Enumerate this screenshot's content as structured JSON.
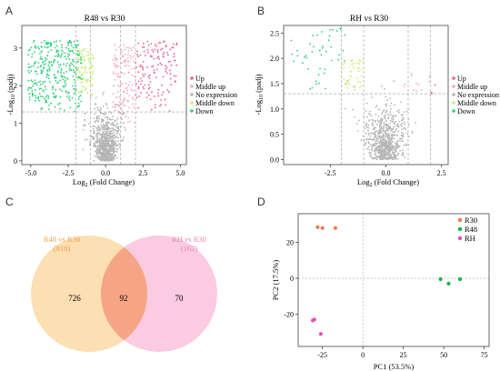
{
  "panels": {
    "A": {
      "letter": "A",
      "title": "R48 vs R30",
      "xlabel": "Log2 (Fold Change)",
      "ylabel": "-Log10 (padj)",
      "xticks": [
        "-5.0",
        "-2.5",
        "0.0",
        "2.5",
        "5.0"
      ],
      "yticks": [
        "0",
        "1",
        "2",
        "3"
      ],
      "legend": [
        "Up",
        "Middle up",
        "No expression",
        "Middle down",
        "Down"
      ]
    },
    "B": {
      "letter": "B",
      "title": "RH vs R30",
      "xlabel": "Log2 (Fold Change)",
      "ylabel": "-Log10 (padj)",
      "xticks": [
        "-2.5",
        "0.0",
        "2.5"
      ],
      "yticks": [
        "0.0",
        "0.5",
        "1.0",
        "1.5",
        "2.0",
        "2.5"
      ],
      "legend": [
        "Up",
        "Middle up",
        "No expression",
        "Middle down",
        "Down"
      ]
    },
    "C": {
      "letter": "C",
      "left_label": "R48 vs R30",
      "left_count": "(818)",
      "right_label": "RH vs R30",
      "right_count": "(162)",
      "only_left": "726",
      "overlap": "92",
      "only_right": "70"
    },
    "D": {
      "letter": "D",
      "xlabel": "PC1 (53.5%)",
      "ylabel": "PC2 (17.5%)",
      "xticks": [
        "-25",
        "0",
        "25",
        "50",
        "75"
      ],
      "yticks": [
        "20",
        "0",
        "-20"
      ],
      "legend": [
        "R30",
        "R48",
        "RH"
      ]
    }
  },
  "colors": {
    "up": "#e8608a",
    "middle_up": "#f5a8c8",
    "no_expression": "#b5b5b5",
    "middle_down": "#c8ef6a",
    "down": "#2ccf7a",
    "venn_left": "#fbd9a5",
    "venn_right": "#f9c2dc",
    "venn_overlap": "#f5a585",
    "venn_left_text": "#e8a14a",
    "venn_right_text": "#e586b2",
    "pca_R30": "#f07a4a",
    "pca_R48": "#19b34a",
    "pca_RH": "#e050c0"
  },
  "chart_data": [
    {
      "type": "scatter",
      "title": "R48 vs R30",
      "xlabel": "Log2 (Fold Change)",
      "ylabel": "-Log10 (padj)",
      "xlim": [
        -5.6,
        5.4
      ],
      "ylim": [
        -0.1,
        3.6
      ],
      "thresholds": {
        "x": [
          -2,
          -1,
          1,
          2
        ],
        "y": 1.3
      },
      "series": [
        {
          "name": "Up",
          "region": "x>2, y>1.3",
          "approx_count": 140,
          "x_range": [
            2.0,
            4.8
          ],
          "y_range": [
            1.3,
            3.2
          ]
        },
        {
          "name": "Middle up",
          "region": "1<x<2, y>1.3",
          "approx_count": 120,
          "x_range": [
            0.5,
            2.0
          ],
          "y_range": [
            1.0,
            3.1
          ]
        },
        {
          "name": "No expression",
          "region": "center / y<1.3",
          "approx_count": 800,
          "x_range": [
            -1.5,
            1.5
          ],
          "y_range": [
            0.0,
            2.0
          ]
        },
        {
          "name": "Middle down",
          "region": "-2<x<-1, y>1.3",
          "approx_count": 90,
          "x_range": [
            -2.0,
            -0.8
          ],
          "y_range": [
            1.7,
            3.0
          ]
        },
        {
          "name": "Down",
          "region": "x<-2, y>1.3",
          "approx_count": 330,
          "x_range": [
            -5.2,
            -1.6
          ],
          "y_range": [
            1.3,
            3.2
          ]
        }
      ]
    },
    {
      "type": "scatter",
      "title": "RH vs R30",
      "xlabel": "Log2 (Fold Change)",
      "ylabel": "-Log10 (padj)",
      "xlim": [
        -4.6,
        2.8
      ],
      "ylim": [
        -0.1,
        2.65
      ],
      "thresholds": {
        "x": [
          -2,
          -1,
          1,
          2
        ],
        "y": 1.3
      },
      "series": [
        {
          "name": "Up",
          "region": "x>2, y>1.3",
          "approx_count": 3,
          "x_range": [
            2.0,
            2.3
          ],
          "y_range": [
            1.3,
            1.5
          ]
        },
        {
          "name": "Middle up",
          "region": "1<x<2, y>1.3",
          "approx_count": 12,
          "x_range": [
            0.8,
            2.0
          ],
          "y_range": [
            1.3,
            1.7
          ]
        },
        {
          "name": "No expression",
          "region": "center / y<1.3",
          "approx_count": 700,
          "x_range": [
            -2.0,
            1.5
          ],
          "y_range": [
            0.0,
            1.6
          ]
        },
        {
          "name": "Middle down",
          "region": "-2<x<-1, y>1.3",
          "approx_count": 40,
          "x_range": [
            -2.0,
            -1.0
          ],
          "y_range": [
            1.3,
            2.0
          ]
        },
        {
          "name": "Down",
          "region": "x<-2, y>1.3",
          "approx_count": 45,
          "x_range": [
            -4.3,
            -1.8
          ],
          "y_range": [
            1.3,
            2.6
          ]
        }
      ]
    },
    {
      "type": "venn",
      "sets": [
        {
          "name": "R48 vs R30",
          "total": 818,
          "only": 726
        },
        {
          "name": "RH vs R30",
          "total": 162,
          "only": 70
        }
      ],
      "intersection": 92
    },
    {
      "type": "scatter",
      "xlabel": "PC1 (53.5%)",
      "ylabel": "PC2 (17.5%)",
      "xlim": [
        -40,
        78
      ],
      "ylim": [
        -38,
        36
      ],
      "series": [
        {
          "name": "R30",
          "points": [
            [
              -28,
              28.5
            ],
            [
              -25,
              28
            ],
            [
              -17,
              28
            ]
          ]
        },
        {
          "name": "R48",
          "points": [
            [
              48,
              -0.5
            ],
            [
              53,
              -3
            ],
            [
              60,
              -0.5
            ]
          ]
        },
        {
          "name": "RH",
          "points": [
            [
              -31,
              -23.5
            ],
            [
              -30,
              -23
            ],
            [
              -26,
              -31
            ]
          ]
        }
      ]
    }
  ]
}
